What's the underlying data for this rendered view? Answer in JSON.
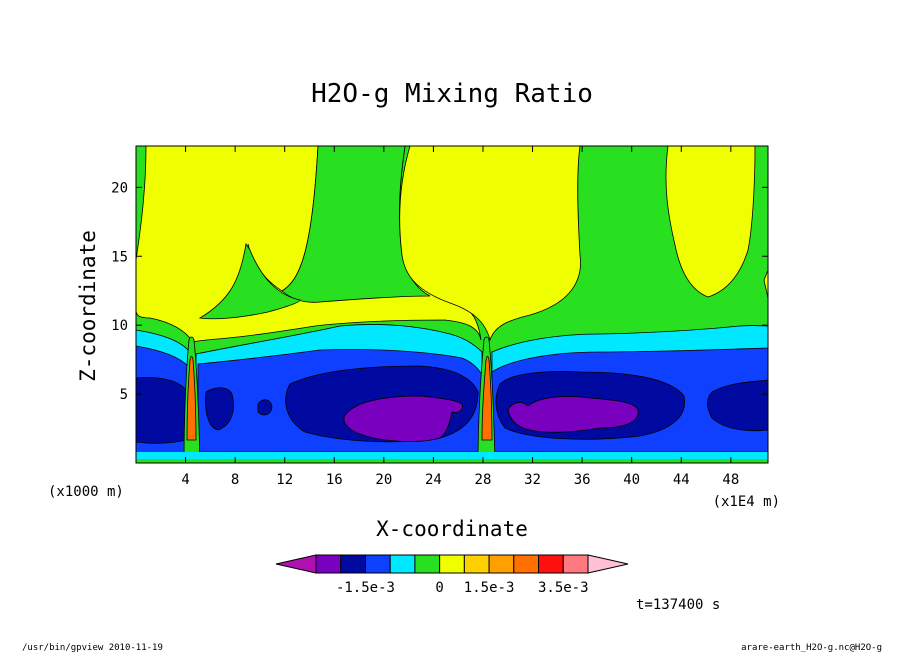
{
  "chart_data": {
    "type": "filled-contour",
    "title": "H2O-g Mixing Ratio",
    "xlabel": "X-coordinate",
    "ylabel": "Z-coordinate",
    "x_unit_left": "(x1000 m)",
    "x_unit_right": "(x1E4 m)",
    "xlim": [
      0,
      51
    ],
    "ylim": [
      0,
      23
    ],
    "x_ticks": [
      {
        "value": 4,
        "label": "4"
      },
      {
        "value": 8,
        "label": "8"
      },
      {
        "value": 12,
        "label": "12"
      },
      {
        "value": 16,
        "label": "16"
      },
      {
        "value": 20,
        "label": "20"
      },
      {
        "value": 24,
        "label": "24"
      },
      {
        "value": 28,
        "label": "28"
      },
      {
        "value": 32,
        "label": "32"
      },
      {
        "value": 36,
        "label": "36"
      },
      {
        "value": 40,
        "label": "40"
      },
      {
        "value": 44,
        "label": "44"
      },
      {
        "value": 48,
        "label": "48"
      }
    ],
    "y_ticks": [
      {
        "value": 5,
        "label": "5"
      },
      {
        "value": 10,
        "label": "10"
      },
      {
        "value": 15,
        "label": "15"
      },
      {
        "value": 20,
        "label": "20"
      }
    ],
    "colorbar": {
      "colors": [
        "#b010b0",
        "#7a00c0",
        "#000aa0",
        "#1040ff",
        "#00e8ff",
        "#28e020",
        "#f0ff00",
        "#ffd000",
        "#ffa000",
        "#ff7000",
        "#ff1010",
        "#ff7a80",
        "#ffc0d8"
      ],
      "labels": [
        "-1.5e-3",
        "0",
        "1.5e-3",
        "3.5e-3"
      ]
    },
    "time_label": "t=137400 s"
  },
  "footer": {
    "left": "/usr/bin/gpview   2010-11-19",
    "right": "arare-earth_H2O-g.nc@H2O-g"
  }
}
